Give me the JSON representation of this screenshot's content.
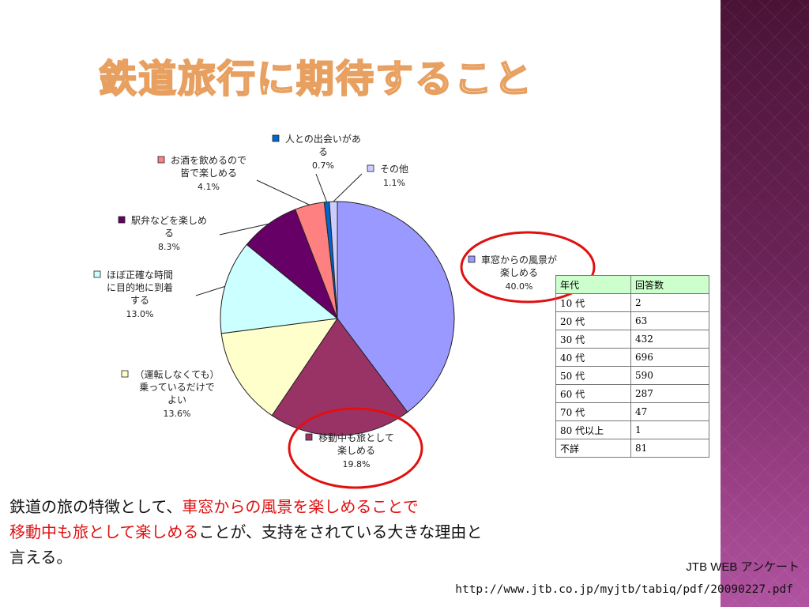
{
  "title": "鉄道旅行に期待すること",
  "chart_data": {
    "type": "pie",
    "slices": [
      {
        "label_lines": [
          "車窓からの風景が",
          "楽しめる"
        ],
        "pct_label": "40.0%",
        "value": 40.0,
        "color": "#9999ff"
      },
      {
        "label_lines": [
          "移動中も旅として",
          "楽しめる"
        ],
        "pct_label": "19.8%",
        "value": 19.8,
        "color": "#993366"
      },
      {
        "label_lines": [
          "（運転しなくても）",
          "乗っているだけで",
          "よい"
        ],
        "pct_label": "13.6%",
        "value": 13.6,
        "color": "#ffffcc"
      },
      {
        "label_lines": [
          "ほぼ正確な時間",
          "に目的地に到着",
          "する"
        ],
        "pct_label": "13.0%",
        "value": 13.0,
        "color": "#ccffff"
      },
      {
        "label_lines": [
          "駅弁などを楽しめ",
          "る"
        ],
        "pct_label": "8.3%",
        "value": 8.3,
        "color": "#660066"
      },
      {
        "label_lines": [
          "お酒を飲めるので",
          "皆で楽しめる"
        ],
        "pct_label": "4.1%",
        "value": 4.1,
        "color": "#ff8080"
      },
      {
        "label_lines": [
          "人との出会いがあ",
          "る"
        ],
        "pct_label": "0.7%",
        "value": 0.7,
        "color": "#0066cc"
      },
      {
        "label_lines": [
          "その他"
        ],
        "pct_label": "1.1%",
        "value": 1.1,
        "color": "#ccccff"
      }
    ]
  },
  "age_table": {
    "headers": [
      "年代",
      "回答数"
    ],
    "rows": [
      [
        "10 代",
        "2"
      ],
      [
        "20 代",
        "63"
      ],
      [
        "30 代",
        "432"
      ],
      [
        "40 代",
        "696"
      ],
      [
        "50 代",
        "590"
      ],
      [
        "60 代",
        "287"
      ],
      [
        "70 代",
        "47"
      ],
      [
        "80 代以上",
        "1"
      ],
      [
        "不詳",
        "81"
      ]
    ]
  },
  "body": {
    "part1": "鉄道の旅の特徴として、",
    "part2_red": "車窓からの風景を楽しめることで",
    "part3_red": "移動中も旅として楽しめる",
    "part4": "ことが、支持をされている大きな理由と",
    "part5": "言える。"
  },
  "source": {
    "name": "JTB WEB アンケート",
    "url": "http://www.jtb.co.jp/myjtb/tabiq/pdf/20090227.pdf"
  },
  "colors": {
    "highlight_circle": "#e01010",
    "sidebar": "#6b2458",
    "title_outline": "#e8a060",
    "table_header": "#ccffcc"
  }
}
